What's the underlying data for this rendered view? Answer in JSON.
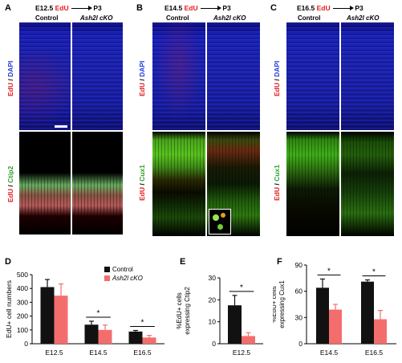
{
  "figure": {
    "panels": {
      "A": {
        "letter": "A",
        "timeline_start": "E12.5",
        "timeline_marker": "EdU",
        "timeline_end": "P3",
        "col_control": "Control",
        "col_cko": "Ash2l cKO",
        "top_stain_edu": "EdU",
        "top_stain_sep": " / ",
        "top_stain_dapi": "DAPI",
        "bottom_stain_edu": "EdU",
        "bottom_stain_sep": " / ",
        "bottom_stain_marker": "Ctip2"
      },
      "B": {
        "letter": "B",
        "timeline_start": "E14.5",
        "timeline_marker": "EdU",
        "timeline_end": "P3",
        "col_control": "Control",
        "col_cko": "Ash2l cKO",
        "top_stain_edu": "EdU",
        "top_stain_sep": " / ",
        "top_stain_dapi": "DAPI",
        "bottom_stain_edu": "EdU",
        "bottom_stain_sep": " / ",
        "bottom_stain_marker": "Cux1"
      },
      "C": {
        "letter": "C",
        "timeline_start": "E16.5",
        "timeline_marker": "EdU",
        "timeline_end": "P3",
        "col_control": "Control",
        "col_cko": "Ash2l cKO",
        "top_stain_edu": "EdU",
        "top_stain_sep": " / ",
        "top_stain_dapi": "DAPI",
        "bottom_stain_edu": "EdU",
        "bottom_stain_sep": " / ",
        "bottom_stain_marker": "Cux1"
      },
      "D": {
        "letter": "D"
      },
      "E": {
        "letter": "E"
      },
      "F": {
        "letter": "F"
      }
    },
    "colors": {
      "control": "#111111",
      "cko": "#f46d6d",
      "edu": "#e41a1c",
      "dapi": "#1f3bd6",
      "marker": "#2ca02c"
    }
  },
  "chart_data": [
    {
      "panel": "D",
      "type": "bar",
      "categories": [
        "E12.5",
        "E14.5",
        "E16.5"
      ],
      "series": [
        {
          "name": "Control",
          "values": [
            410,
            138,
            88
          ],
          "errors": [
            55,
            25,
            8
          ]
        },
        {
          "name": "Ash2l cKO",
          "values": [
            348,
            100,
            45
          ],
          "errors": [
            85,
            35,
            15
          ]
        }
      ],
      "ylabel": "EdU+ cell numbers",
      "yticks": [
        0,
        100,
        200,
        300,
        400,
        500
      ],
      "ylim": [
        0,
        500
      ],
      "significance": [
        {
          "category": "E14.5",
          "label": "*"
        },
        {
          "category": "E16.5",
          "label": "*"
        }
      ],
      "legend": "top-right"
    },
    {
      "panel": "E",
      "type": "bar",
      "categories": [
        "E12.5"
      ],
      "series": [
        {
          "name": "Control",
          "values": [
            17.5
          ],
          "errors": [
            4.5
          ]
        },
        {
          "name": "Ash2l cKO",
          "values": [
            3.5
          ],
          "errors": [
            1.5
          ]
        }
      ],
      "ylabel_line1": "%EdU+ cells",
      "ylabel_line2": "expressing Ctip2",
      "yticks": [
        0,
        10,
        20,
        30
      ],
      "ylim": [
        0,
        30
      ],
      "significance": [
        {
          "category": "E12.5",
          "label": "*"
        }
      ]
    },
    {
      "panel": "F",
      "type": "bar",
      "categories": [
        "E14.5",
        "E16.5"
      ],
      "series": [
        {
          "name": "Control",
          "values": [
            64,
            71
          ],
          "errors": [
            10,
            2
          ]
        },
        {
          "name": "Ash2l cKO",
          "values": [
            39,
            28
          ],
          "errors": [
            6,
            10
          ]
        }
      ],
      "ylabel_line1": "%EdU+ cells",
      "ylabel_line2": "expressing Cux1",
      "yticks": [
        0,
        30,
        60,
        90
      ],
      "ylim": [
        0,
        90
      ],
      "significance": [
        {
          "category": "E14.5",
          "label": "*"
        },
        {
          "category": "E16.5",
          "label": "*"
        }
      ]
    }
  ]
}
